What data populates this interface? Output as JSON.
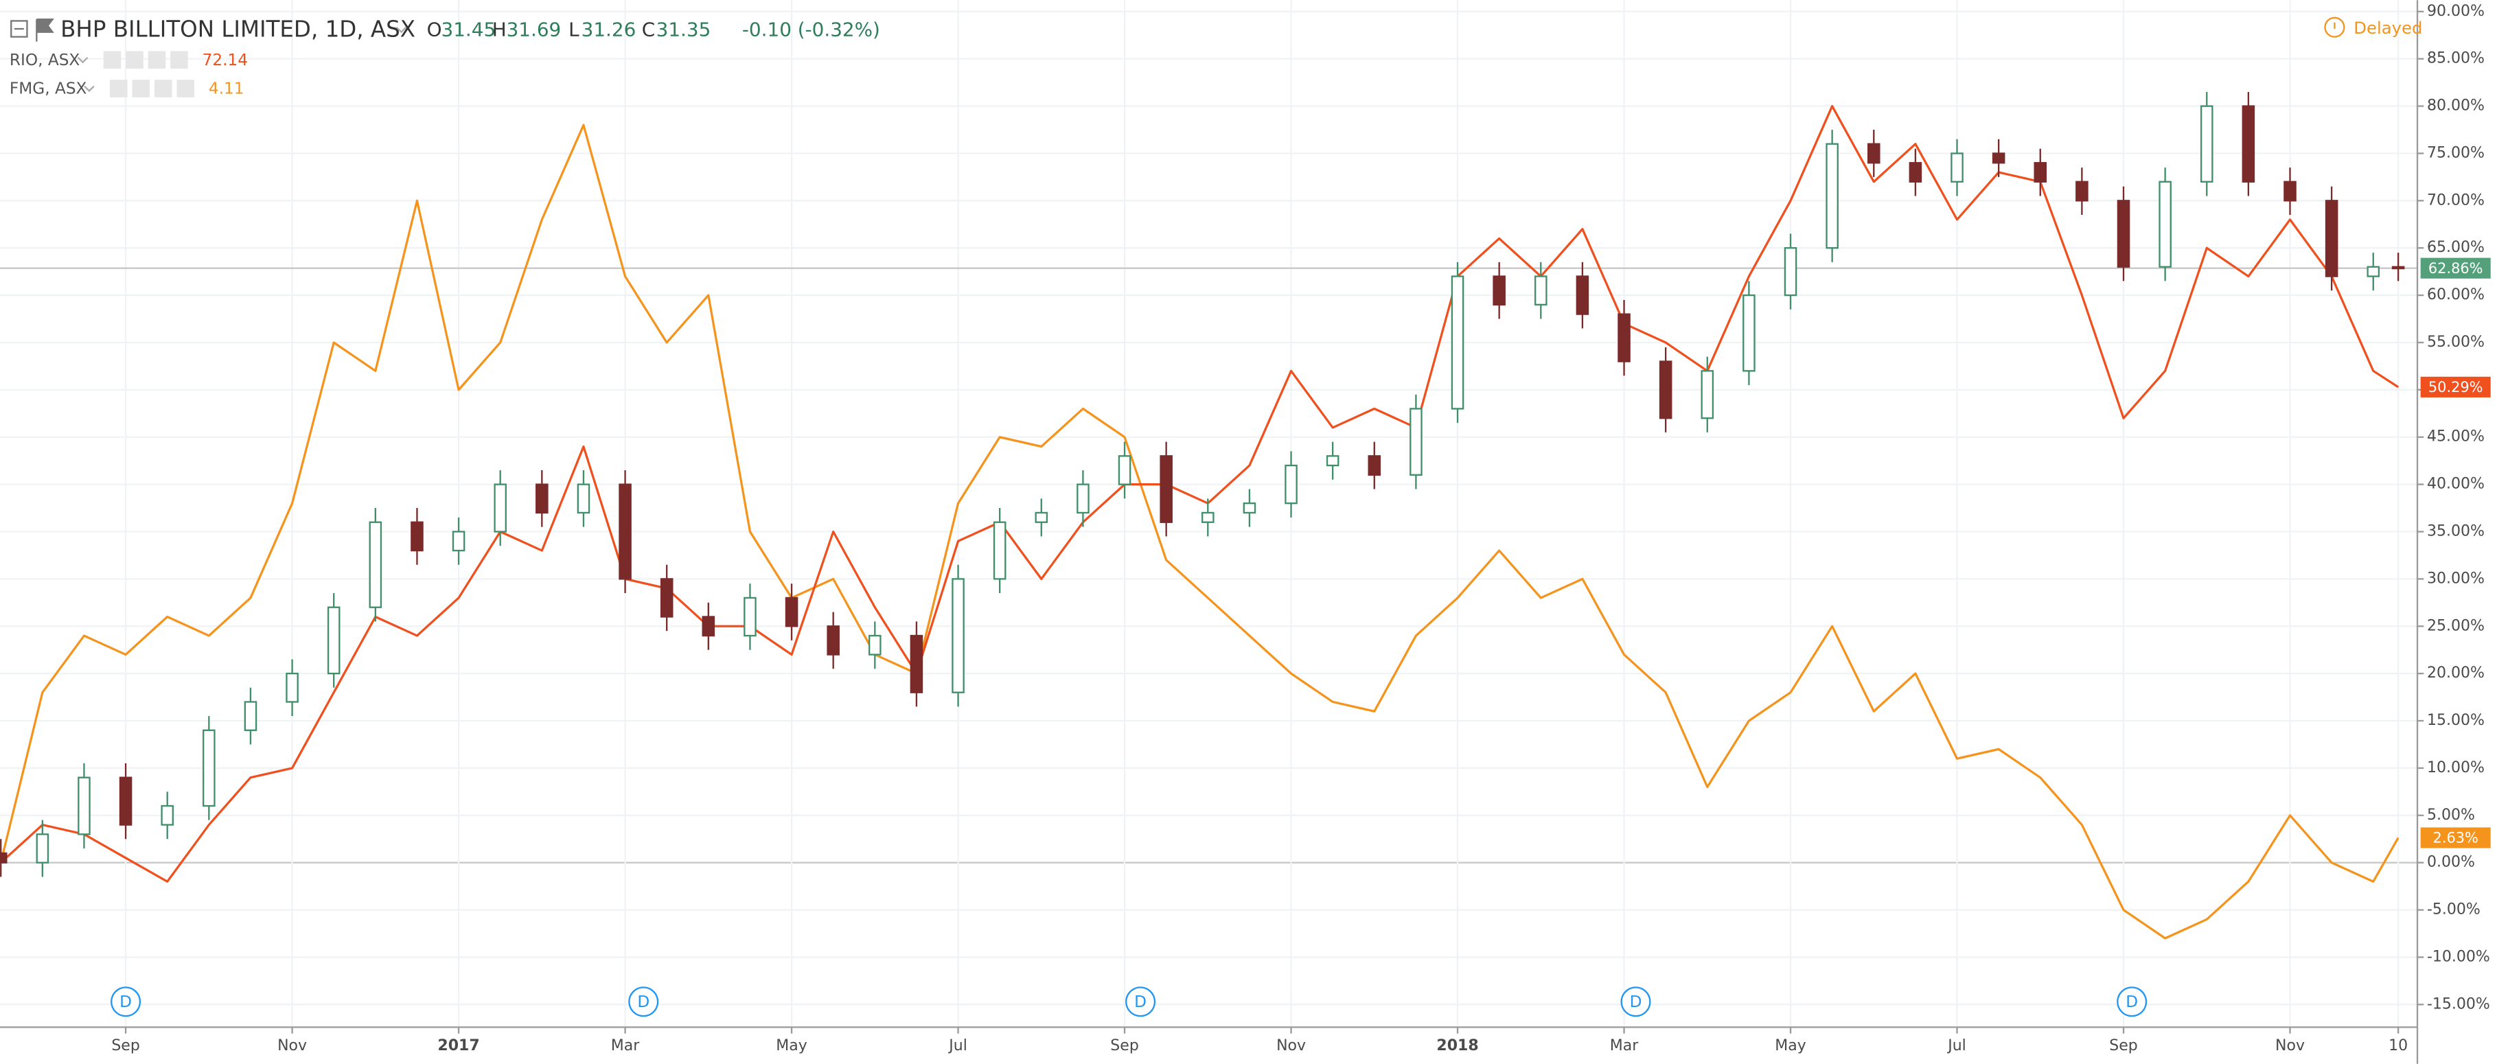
{
  "chart_data": {
    "type": "candlestick",
    "title": "BHP BILLITON LIMITED, 1D, ASX",
    "ohlc": [
      {
        "key": "O",
        "value": 31.45
      },
      {
        "key": "H",
        "value": 31.69
      },
      {
        "key": "L",
        "value": 31.26
      },
      {
        "key": "C",
        "value": 31.35
      }
    ],
    "change": "-0.10 (-0.32%)",
    "status": "Delayed",
    "x": [
      -0.5,
      0,
      0.5,
      1,
      1.5,
      2,
      2.5,
      3,
      3.5,
      4,
      4.5,
      5,
      5.5,
      6,
      6.5,
      7,
      7.5,
      8,
      8.5,
      9,
      9.5,
      10,
      10.5,
      11,
      11.5,
      12,
      12.5,
      13,
      13.5,
      14,
      14.5,
      15,
      15.5,
      16,
      16.5,
      17,
      17.5,
      18,
      18.5,
      19,
      19.5,
      20,
      20.5,
      21,
      21.5,
      22,
      22.5,
      23,
      23.5,
      24,
      24.5,
      25,
      25.5,
      26,
      26.5,
      27,
      27.5,
      28,
      28.3
    ],
    "xlim": [
      -0.51,
      28.53
    ],
    "xticks": [
      {
        "value": 1,
        "label": "Sep"
      },
      {
        "value": 3,
        "label": "Nov"
      },
      {
        "value": 5,
        "label": "2017"
      },
      {
        "value": 7,
        "label": "Mar"
      },
      {
        "value": 9,
        "label": "May"
      },
      {
        "value": 11,
        "label": "Jul"
      },
      {
        "value": 13,
        "label": "Sep"
      },
      {
        "value": 15,
        "label": "Nov"
      },
      {
        "value": 17,
        "label": "2018"
      },
      {
        "value": 19,
        "label": "Mar"
      },
      {
        "value": 21,
        "label": "May"
      },
      {
        "value": 23,
        "label": "Jul"
      },
      {
        "value": 25,
        "label": "Sep"
      },
      {
        "value": 27,
        "label": "Nov"
      },
      {
        "value": 28.3,
        "label": "10"
      }
    ],
    "ylim": [
      -17.4,
      91.2
    ],
    "yticks": [
      {
        "value": 90,
        "label": "90.00%"
      },
      {
        "value": 85,
        "label": "85.00%"
      },
      {
        "value": 80,
        "label": "80.00%"
      },
      {
        "value": 75,
        "label": "75.00%"
      },
      {
        "value": 70,
        "label": "70.00%"
      },
      {
        "value": 65,
        "label": "65.00%"
      },
      {
        "value": 60,
        "label": "60.00%"
      },
      {
        "value": 55,
        "label": "55.00%"
      },
      {
        "value": 50,
        "label": "50.00%"
      },
      {
        "value": 45,
        "label": "45.00%"
      },
      {
        "value": 40,
        "label": "40.00%"
      },
      {
        "value": 35,
        "label": "35.00%"
      },
      {
        "value": 30,
        "label": "30.00%"
      },
      {
        "value": 25,
        "label": "25.00%"
      },
      {
        "value": 20,
        "label": "20.00%"
      },
      {
        "value": 15,
        "label": "15.00%"
      },
      {
        "value": 10,
        "label": "10.00%"
      },
      {
        "value": 5,
        "label": "5.00%"
      },
      {
        "value": 0,
        "label": "0.00%"
      },
      {
        "value": -5,
        "label": "-5.00%"
      },
      {
        "value": -10,
        "label": "-10.00%"
      },
      {
        "value": -15,
        "label": "-15.00%"
      }
    ],
    "grid": true,
    "events": [
      {
        "x": 1.0,
        "label": "D"
      },
      {
        "x": 7.22,
        "label": "D"
      },
      {
        "x": 13.19,
        "label": "D"
      },
      {
        "x": 19.14,
        "label": "D"
      },
      {
        "x": 25.1,
        "label": "D"
      }
    ],
    "series": [
      {
        "name": "BHP BILLITON LIMITED, 1D, ASX",
        "type": "candlestick",
        "color": "#53a07a",
        "up_color": "#3f8f6b",
        "down_color": "#7b2a2a",
        "open": [
          1,
          0,
          3,
          9,
          4,
          6,
          14,
          17,
          20,
          27,
          36,
          33,
          35,
          40,
          37,
          40,
          30,
          26,
          24,
          28,
          25,
          22,
          24,
          18,
          30,
          36,
          37,
          40,
          43,
          36,
          37,
          38,
          42,
          43,
          41,
          48,
          62,
          59,
          62,
          58,
          53,
          47,
          52,
          60,
          65,
          76,
          74,
          72,
          75,
          74,
          72,
          70,
          63,
          72,
          80,
          72,
          70,
          62,
          63
        ],
        "high": [
          2.5,
          4.5,
          10.5,
          10.5,
          7.5,
          15.5,
          18.5,
          21.5,
          28.5,
          37.5,
          37.5,
          36.5,
          41.5,
          41.5,
          41.5,
          41.5,
          31.5,
          27.5,
          29.5,
          29.5,
          26.5,
          25.5,
          25.5,
          31.5,
          37.5,
          38.5,
          41.5,
          44.5,
          44.5,
          38.5,
          39.5,
          43.5,
          44.5,
          44.5,
          49.5,
          63.5,
          63.5,
          63.5,
          63.5,
          59.5,
          54.5,
          53.5,
          61.5,
          66.5,
          77.5,
          77.5,
          75.5,
          76.5,
          76.5,
          75.5,
          73.5,
          71.5,
          73.5,
          81.5,
          81.5,
          73.5,
          71.5,
          64.5,
          64.5
        ],
        "low": [
          -1.5,
          -1.5,
          1.5,
          2.5,
          2.5,
          4.5,
          12.5,
          15.5,
          18.5,
          25.5,
          31.5,
          31.5,
          33.5,
          35.5,
          35.5,
          28.5,
          24.5,
          22.5,
          22.5,
          23.5,
          20.5,
          20.5,
          16.5,
          16.5,
          28.5,
          34.5,
          35.5,
          38.5,
          34.5,
          34.5,
          35.5,
          36.5,
          40.5,
          39.5,
          39.5,
          46.5,
          57.5,
          57.5,
          56.5,
          51.5,
          45.5,
          45.5,
          50.5,
          58.5,
          63.5,
          72.5,
          70.5,
          70.5,
          72.5,
          70.5,
          68.5,
          61.5,
          61.5,
          70.5,
          70.5,
          68.5,
          60.5,
          60.5,
          61.5
        ],
        "close": [
          0,
          3,
          9,
          4,
          6,
          14,
          17,
          20,
          27,
          36,
          33,
          35,
          40,
          37,
          40,
          30,
          26,
          24,
          28,
          25,
          22,
          24,
          18,
          30,
          36,
          37,
          40,
          43,
          36,
          37,
          38,
          42,
          43,
          41,
          48,
          62,
          59,
          62,
          58,
          53,
          47,
          52,
          60,
          65,
          76,
          74,
          72,
          75,
          74,
          72,
          70,
          63,
          72,
          80,
          72,
          70,
          62,
          63,
          62.86
        ],
        "last": {
          "value": 62.86,
          "label": "62.86%"
        }
      },
      {
        "name": "RIO, ASX",
        "type": "line",
        "price": 72.14,
        "color": "#f0501e",
        "values": [
          0,
          4,
          3,
          0.5,
          -2,
          4,
          9,
          10,
          18,
          26,
          24,
          28,
          35,
          33,
          44,
          30,
          29,
          25,
          25,
          22,
          35,
          27,
          20,
          34,
          36,
          30,
          36,
          40,
          40,
          38,
          42,
          52,
          46,
          48,
          46,
          62,
          66,
          62,
          67,
          57,
          55,
          52,
          62,
          70,
          80,
          72,
          76,
          68,
          73,
          72,
          60,
          47,
          52,
          65,
          62,
          68,
          62,
          52,
          50.29
        ],
        "last": {
          "value": 50.29,
          "label": "50.29%"
        }
      },
      {
        "name": "FMG, ASX",
        "type": "line",
        "price": 4.11,
        "color": "#f5941d",
        "values": [
          0,
          18,
          24,
          22,
          26,
          24,
          28,
          38,
          55,
          52,
          70,
          50,
          55,
          68,
          78,
          62,
          55,
          60,
          35,
          28,
          30,
          22,
          20,
          38,
          45,
          44,
          48,
          45,
          32,
          28,
          24,
          20,
          17,
          16,
          24,
          28,
          33,
          28,
          30,
          22,
          18,
          8,
          15,
          18,
          25,
          16,
          20,
          11,
          12,
          9,
          4,
          -5,
          -8,
          -6,
          -2,
          5,
          0,
          -2,
          2.63
        ],
        "last": {
          "value": 2.63,
          "label": "2.63%"
        }
      }
    ]
  }
}
